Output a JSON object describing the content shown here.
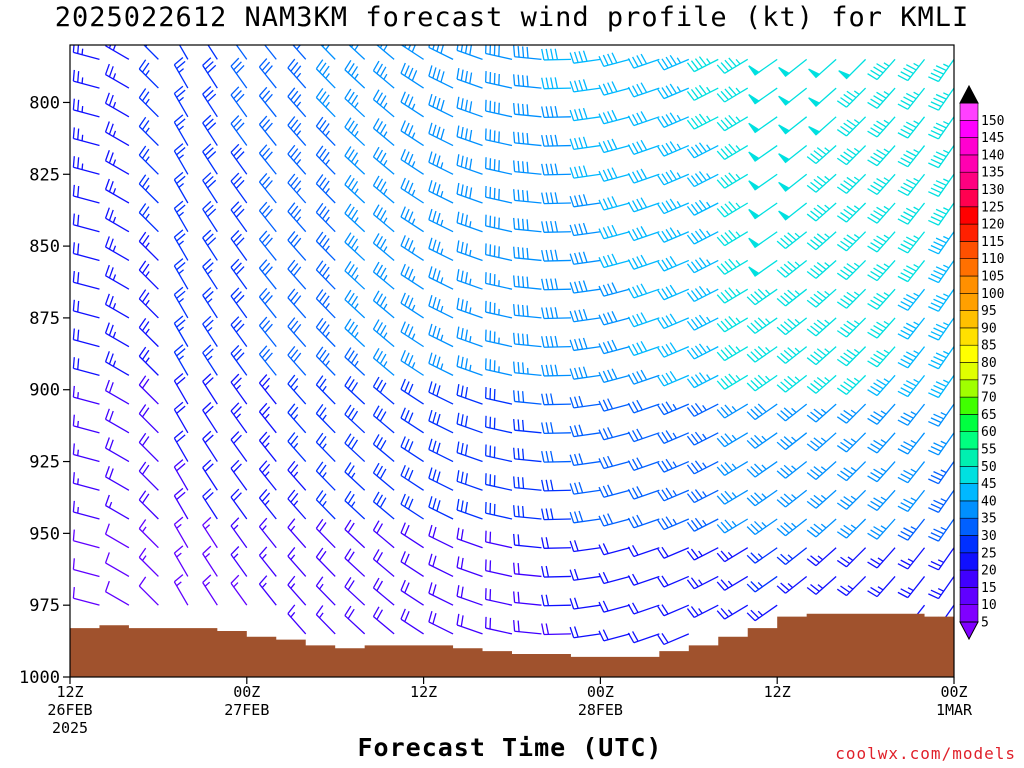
{
  "title": "2025022612 NAM3KM forecast wind profile (kt) for KMLI",
  "xlabel": "Forecast Time (UTC)",
  "credit": "coolwx.com/models",
  "chart_data": {
    "type": "wind-barb-profile",
    "title": "2025022612 NAM3KM forecast wind profile (kt) for KMLI",
    "xlabel": "Forecast Time (UTC)",
    "y_ticks": [
      800,
      825,
      850,
      875,
      900,
      925,
      950,
      975,
      1000
    ],
    "y_range_hpa": [
      780,
      1000
    ],
    "x_range_hours": [
      0,
      60
    ],
    "x_ticks": [
      {
        "hour": 0,
        "lines": [
          "12Z",
          "26FEB",
          "2025"
        ]
      },
      {
        "hour": 12,
        "lines": [
          "00Z",
          "27FEB"
        ]
      },
      {
        "hour": 24,
        "lines": [
          "12Z"
        ]
      },
      {
        "hour": 36,
        "lines": [
          "00Z",
          "28FEB"
        ]
      },
      {
        "hour": 48,
        "lines": [
          "12Z"
        ]
      },
      {
        "hour": 60,
        "lines": [
          "00Z",
          "1MAR"
        ]
      }
    ],
    "levels_hpa": [
      785,
      795,
      805,
      815,
      825,
      835,
      845,
      855,
      865,
      875,
      885,
      895,
      905,
      915,
      925,
      935,
      945,
      955,
      965,
      975,
      985
    ],
    "hours": [
      0,
      2,
      4,
      6,
      8,
      10,
      12,
      14,
      16,
      18,
      20,
      22,
      24,
      26,
      28,
      30,
      32,
      34,
      36,
      38,
      40,
      42,
      44,
      46,
      48,
      50,
      52,
      54,
      56,
      58,
      60
    ],
    "direction_keyframes": [
      {
        "hour": 0,
        "deg": 270
      },
      {
        "hour": 8,
        "deg": 330
      },
      {
        "hour": 22,
        "deg": 310
      },
      {
        "hour": 38,
        "deg": 255
      },
      {
        "hour": 48,
        "deg": 235
      },
      {
        "hour": 60,
        "deg": 215
      }
    ],
    "speed_keyframes": [
      {
        "hour": 0,
        "kt": 18
      },
      {
        "hour": 10,
        "kt": 25
      },
      {
        "hour": 20,
        "kt": 33
      },
      {
        "hour": 30,
        "kt": 35
      },
      {
        "hour": 40,
        "kt": 38
      },
      {
        "hour": 48,
        "kt": 45
      },
      {
        "hour": 60,
        "kt": 42
      }
    ],
    "surface_pressure_hpa": [
      {
        "hour": 0,
        "hpa": 983
      },
      {
        "hour": 2,
        "hpa": 982
      },
      {
        "hour": 4,
        "hpa": 983
      },
      {
        "hour": 6,
        "hpa": 983
      },
      {
        "hour": 8,
        "hpa": 983
      },
      {
        "hour": 10,
        "hpa": 984
      },
      {
        "hour": 12,
        "hpa": 986
      },
      {
        "hour": 14,
        "hpa": 987
      },
      {
        "hour": 16,
        "hpa": 989
      },
      {
        "hour": 18,
        "hpa": 990
      },
      {
        "hour": 20,
        "hpa": 989
      },
      {
        "hour": 22,
        "hpa": 989
      },
      {
        "hour": 24,
        "hpa": 989
      },
      {
        "hour": 26,
        "hpa": 990
      },
      {
        "hour": 28,
        "hpa": 991
      },
      {
        "hour": 30,
        "hpa": 992
      },
      {
        "hour": 32,
        "hpa": 992
      },
      {
        "hour": 34,
        "hpa": 993
      },
      {
        "hour": 36,
        "hpa": 993
      },
      {
        "hour": 38,
        "hpa": 993
      },
      {
        "hour": 40,
        "hpa": 991
      },
      {
        "hour": 42,
        "hpa": 989
      },
      {
        "hour": 44,
        "hpa": 986
      },
      {
        "hour": 46,
        "hpa": 983
      },
      {
        "hour": 48,
        "hpa": 979
      },
      {
        "hour": 50,
        "hpa": 978
      },
      {
        "hour": 52,
        "hpa": 978
      },
      {
        "hour": 54,
        "hpa": 978
      },
      {
        "hour": 56,
        "hpa": 978
      },
      {
        "hour": 58,
        "hpa": 979
      },
      {
        "hour": 60,
        "hpa": 981
      }
    ],
    "terrain_color": "#a0522d",
    "colorbar": {
      "labels": [
        5,
        10,
        15,
        20,
        25,
        30,
        35,
        40,
        45,
        50,
        55,
        60,
        65,
        70,
        75,
        80,
        85,
        90,
        95,
        100,
        105,
        110,
        115,
        120,
        125,
        130,
        135,
        140,
        145,
        150
      ],
      "colors": [
        "#8000ff",
        "#6000ff",
        "#4000ff",
        "#1010ff",
        "#0030ff",
        "#0060ff",
        "#0090ff",
        "#00b8ff",
        "#00e0e0",
        "#00f0b0",
        "#00ff80",
        "#00ff40",
        "#40ff00",
        "#a0ff00",
        "#e0ff00",
        "#ffff00",
        "#ffe000",
        "#ffc000",
        "#ffa000",
        "#ff9000",
        "#ff7000",
        "#ff5000",
        "#ff2000",
        "#ff0000",
        "#ff0050",
        "#ff0080",
        "#ff00b0",
        "#ff00d0",
        "#ff00ff",
        "#ff40ff"
      ]
    }
  }
}
